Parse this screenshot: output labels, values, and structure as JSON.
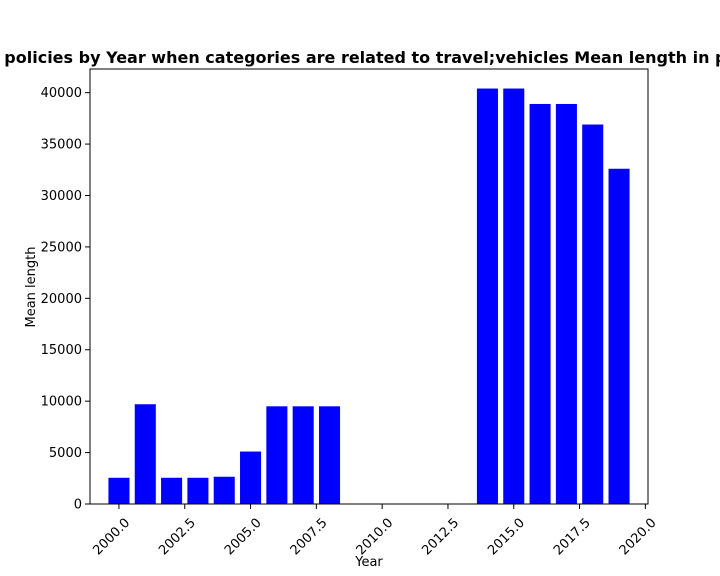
{
  "chart_data": {
    "type": "bar",
    "title": "Mean length in privacy policies by Year when categories are related to travel;vehicles Mean length in privacy policies by Year",
    "xlabel": "Year",
    "ylabel": "Mean length",
    "x": [
      2000,
      2001,
      2002,
      2003,
      2004,
      2005,
      2006,
      2007,
      2008,
      2014,
      2015,
      2016,
      2017,
      2018,
      2019
    ],
    "values": [
      2550,
      9700,
      2550,
      2550,
      2650,
      5100,
      9500,
      9500,
      9500,
      40400,
      40400,
      38900,
      38900,
      36900,
      32600
    ],
    "xlim": [
      1998.9,
      2020.1
    ],
    "ylim": [
      0,
      42300
    ],
    "xticks": [
      2000.0,
      2002.5,
      2005.0,
      2007.5,
      2010.0,
      2012.5,
      2015.0,
      2017.5,
      2020.0
    ],
    "xtick_labels": [
      "2000.0",
      "2002.5",
      "2005.0",
      "2007.5",
      "2010.0",
      "2012.5",
      "2015.0",
      "2017.5",
      "2020.0"
    ],
    "yticks": [
      0,
      5000,
      10000,
      15000,
      20000,
      25000,
      30000,
      35000,
      40000
    ],
    "ytick_labels": [
      "0",
      "5000",
      "10000",
      "15000",
      "20000",
      "25000",
      "30000",
      "35000",
      "40000"
    ],
    "bar_color": "#0000ff",
    "grid": false,
    "legend": "none"
  }
}
